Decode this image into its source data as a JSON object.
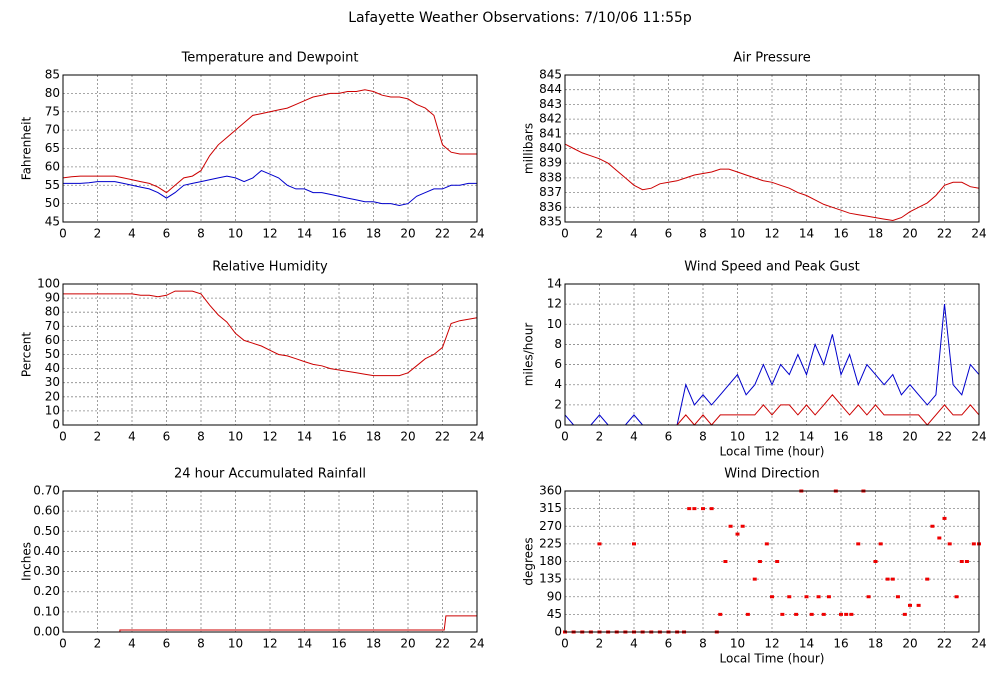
{
  "title": "Lafayette Weather Observations: 7/10/06 11:55p",
  "chart_data": [
    {
      "type": "line",
      "title": "Temperature and Dewpoint",
      "ylabel": "Fahrenheit",
      "x": [
        0,
        0.5,
        1,
        1.5,
        2,
        2.5,
        3,
        3.5,
        4,
        4.5,
        5,
        5.5,
        6,
        6.5,
        7,
        7.5,
        8,
        8.5,
        9,
        9.5,
        10,
        10.5,
        11,
        11.5,
        12,
        12.5,
        13,
        13.5,
        14,
        14.5,
        15,
        15.5,
        16,
        16.5,
        17,
        17.5,
        18,
        18.5,
        19,
        19.5,
        20,
        20.5,
        21,
        21.5,
        22,
        22.5,
        23,
        23.5,
        24
      ],
      "series": [
        {
          "color": "#cc0000",
          "values": [
            57,
            57.3,
            57.5,
            57.5,
            57.5,
            57.5,
            57.5,
            57,
            56.5,
            56,
            55.5,
            54.5,
            53,
            55,
            57,
            57.5,
            59,
            63,
            66,
            68,
            70,
            72,
            74,
            74.5,
            75,
            75.5,
            76,
            77,
            78,
            79,
            79.5,
            80,
            80,
            80.5,
            80.5,
            81,
            80.5,
            79.5,
            79,
            79,
            78.5,
            77,
            76,
            74,
            66,
            64,
            63.5,
            63.5,
            63.5
          ]
        },
        {
          "color": "#0000cc",
          "values": [
            55.5,
            55.5,
            55.5,
            55.7,
            56,
            56,
            56,
            55.5,
            55,
            54.5,
            54,
            53,
            51.5,
            53,
            55,
            55.5,
            56,
            56.5,
            57,
            57.5,
            57,
            56,
            57,
            59,
            58,
            57,
            55,
            54,
            54,
            53,
            53,
            52.5,
            52,
            51.5,
            51,
            50.5,
            50.5,
            50,
            50,
            49.5,
            50,
            52,
            53,
            54,
            54,
            55,
            55,
            55.5,
            55.5
          ]
        }
      ],
      "xlim": [
        0,
        24
      ],
      "xticks": [
        0,
        2,
        4,
        6,
        8,
        10,
        12,
        14,
        16,
        18,
        20,
        22,
        24
      ],
      "ylim": [
        45,
        85
      ],
      "yticks": [
        45,
        50,
        55,
        60,
        65,
        70,
        75,
        80,
        85
      ],
      "grid": true
    },
    {
      "type": "line",
      "title": "Air Pressure",
      "ylabel": "millibars",
      "x": [
        0,
        0.5,
        1,
        1.5,
        2,
        2.5,
        3,
        3.5,
        4,
        4.5,
        5,
        5.5,
        6,
        6.5,
        7,
        7.5,
        8,
        8.5,
        9,
        9.5,
        10,
        10.5,
        11,
        11.5,
        12,
        12.5,
        13,
        13.5,
        14,
        14.5,
        15,
        15.5,
        16,
        16.5,
        17,
        17.5,
        18,
        18.5,
        19,
        19.5,
        20,
        20.5,
        21,
        21.5,
        22,
        22.5,
        23,
        23.5,
        24
      ],
      "series": [
        {
          "color": "#cc0000",
          "values": [
            840.3,
            840,
            839.7,
            839.5,
            839.3,
            839,
            838.5,
            838,
            837.5,
            837.2,
            837.3,
            837.6,
            837.7,
            837.8,
            838,
            838.2,
            838.3,
            838.4,
            838.6,
            838.6,
            838.4,
            838.2,
            838,
            837.8,
            837.7,
            837.5,
            837.3,
            837,
            836.8,
            836.5,
            836.2,
            836,
            835.8,
            835.6,
            835.5,
            835.4,
            835.3,
            835.2,
            835.1,
            835.3,
            835.7,
            836,
            836.3,
            836.8,
            837.5,
            837.7,
            837.7,
            837.4,
            837.3
          ]
        }
      ],
      "xlim": [
        0,
        24
      ],
      "xticks": [
        0,
        2,
        4,
        6,
        8,
        10,
        12,
        14,
        16,
        18,
        20,
        22,
        24
      ],
      "ylim": [
        835,
        845
      ],
      "yticks": [
        835,
        836,
        837,
        838,
        839,
        840,
        841,
        842,
        843,
        844,
        845
      ],
      "grid": true
    },
    {
      "type": "line",
      "title": "Relative Humidity",
      "ylabel": "Percent",
      "x": [
        0,
        0.5,
        1,
        1.5,
        2,
        2.5,
        3,
        3.5,
        4,
        4.5,
        5,
        5.5,
        6,
        6.5,
        7,
        7.5,
        8,
        8.5,
        9,
        9.5,
        10,
        10.5,
        11,
        11.5,
        12,
        12.5,
        13,
        13.5,
        14,
        14.5,
        15,
        15.5,
        16,
        16.5,
        17,
        17.5,
        18,
        18.5,
        19,
        19.5,
        20,
        20.5,
        21,
        21.5,
        22,
        22.5,
        23,
        23.5,
        24
      ],
      "series": [
        {
          "color": "#cc0000",
          "values": [
            93,
            93,
            93,
            93,
            93,
            93,
            93,
            93,
            93,
            92,
            92,
            91,
            92,
            95,
            95,
            95,
            93,
            85,
            78,
            73,
            65,
            60,
            58,
            56,
            53,
            50,
            49,
            47,
            45,
            43,
            42,
            40,
            39,
            38,
            37,
            36,
            35,
            35,
            35,
            35,
            37,
            42,
            47,
            50,
            55,
            72,
            74,
            75,
            76
          ]
        }
      ],
      "xlim": [
        0,
        24
      ],
      "xticks": [
        0,
        2,
        4,
        6,
        8,
        10,
        12,
        14,
        16,
        18,
        20,
        22,
        24
      ],
      "ylim": [
        0,
        100
      ],
      "yticks": [
        0,
        10,
        20,
        30,
        40,
        50,
        60,
        70,
        80,
        90,
        100
      ],
      "grid": true
    },
    {
      "type": "line",
      "title": "Wind Speed and Peak Gust",
      "ylabel": "miles/hour",
      "xlabel": "Local Time (hour)",
      "x": [
        0,
        0.5,
        1,
        1.5,
        2,
        2.5,
        3,
        3.5,
        4,
        4.5,
        5,
        5.5,
        6,
        6.5,
        7,
        7.5,
        8,
        8.5,
        9,
        9.5,
        10,
        10.5,
        11,
        11.5,
        12,
        12.5,
        13,
        13.5,
        14,
        14.5,
        15,
        15.5,
        16,
        16.5,
        17,
        17.5,
        18,
        18.5,
        19,
        19.5,
        20,
        20.5,
        21,
        21.5,
        22,
        22.5,
        23,
        23.5,
        24
      ],
      "series": [
        {
          "color": "#0000cc",
          "values": [
            1,
            0,
            0,
            0,
            1,
            0,
            0,
            0,
            1,
            0,
            0,
            0,
            0,
            0,
            4,
            2,
            3,
            2,
            3,
            4,
            5,
            3,
            4,
            6,
            4,
            6,
            5,
            7,
            5,
            8,
            6,
            9,
            5,
            7,
            4,
            6,
            5,
            4,
            5,
            3,
            4,
            3,
            2,
            3,
            12,
            4,
            3,
            6,
            5
          ]
        },
        {
          "color": "#cc0000",
          "values": [
            0,
            0,
            0,
            0,
            0,
            0,
            0,
            0,
            0,
            0,
            0,
            0,
            0,
            0,
            1,
            0,
            1,
            0,
            1,
            1,
            1,
            1,
            1,
            2,
            1,
            2,
            2,
            1,
            2,
            1,
            2,
            3,
            2,
            1,
            2,
            1,
            2,
            1,
            1,
            1,
            1,
            1,
            0,
            1,
            2,
            1,
            1,
            2,
            1
          ]
        }
      ],
      "xlim": [
        0,
        24
      ],
      "xticks": [
        0,
        2,
        4,
        6,
        8,
        10,
        12,
        14,
        16,
        18,
        20,
        22,
        24
      ],
      "ylim": [
        0,
        14
      ],
      "yticks": [
        0,
        2,
        4,
        6,
        8,
        10,
        12,
        14
      ],
      "grid": true
    },
    {
      "type": "line",
      "title": "24 hour Accumulated Rainfall",
      "ylabel": "Inches",
      "x": [
        0,
        3.3,
        3.3,
        22.1,
        22.2,
        24
      ],
      "series": [
        {
          "color": "#cc0000",
          "values": [
            0,
            0,
            0.01,
            0.01,
            0.08,
            0.08
          ]
        }
      ],
      "xlim": [
        0,
        24
      ],
      "xticks": [
        0,
        2,
        4,
        6,
        8,
        10,
        12,
        14,
        16,
        18,
        20,
        22,
        24
      ],
      "ylim": [
        0,
        0.7
      ],
      "yticks": [
        {
          "value": 0,
          "label": "0.00"
        },
        {
          "value": 0.1,
          "label": "0.10"
        },
        {
          "value": 0.2,
          "label": "0.20"
        },
        {
          "value": 0.3,
          "label": "0.30"
        },
        {
          "value": 0.4,
          "label": "0.40"
        },
        {
          "value": 0.5,
          "label": "0.50"
        },
        {
          "value": 0.6,
          "label": "0.60"
        },
        {
          "value": 0.7,
          "label": "0.70"
        }
      ],
      "grid": true
    },
    {
      "type": "scatter",
      "title": "Wind Direction",
      "ylabel": "degrees",
      "xlabel": "Local Time (hour)",
      "x": [
        0,
        0.5,
        1,
        1.5,
        2,
        2,
        2.5,
        3,
        3.5,
        4,
        4,
        4.5,
        5,
        5.5,
        6,
        6.5,
        6.9,
        7.2,
        7.5,
        8,
        8.5,
        8.8,
        9,
        9.3,
        9.6,
        10,
        10.3,
        10.6,
        11,
        11.3,
        11.7,
        12,
        12.3,
        12.6,
        13,
        13.4,
        13.7,
        14,
        14.3,
        14.7,
        15,
        15.3,
        15.7,
        16,
        16.3,
        16.6,
        17,
        17.3,
        17.6,
        18,
        18.3,
        18.7,
        19,
        19.3,
        19.7,
        20,
        20.5,
        21,
        21.3,
        21.7,
        22,
        22.3,
        22.7,
        23,
        23.3,
        23.7,
        24
      ],
      "series": [
        {
          "color": "#ee0000",
          "values": [
            0,
            0,
            0,
            0,
            0,
            225,
            0,
            0,
            0,
            0,
            225,
            0,
            0,
            0,
            0,
            0,
            0,
            315,
            315,
            315,
            315,
            0,
            45,
            180,
            270,
            250,
            270,
            45,
            135,
            180,
            225,
            90,
            180,
            45,
            90,
            45,
            360,
            90,
            45,
            90,
            45,
            90,
            360,
            45,
            45,
            45,
            225,
            360,
            90,
            180,
            225,
            135,
            135,
            90,
            45,
            68,
            68,
            135,
            270,
            240,
            290,
            225,
            90,
            180,
            180,
            225,
            225
          ]
        }
      ],
      "xlim": [
        0,
        24
      ],
      "xticks": [
        0,
        2,
        4,
        6,
        8,
        10,
        12,
        14,
        16,
        18,
        20,
        22,
        24
      ],
      "ylim": [
        0,
        360
      ],
      "yticks": [
        0,
        45,
        90,
        135,
        180,
        225,
        270,
        315,
        360
      ],
      "grid": true
    }
  ]
}
